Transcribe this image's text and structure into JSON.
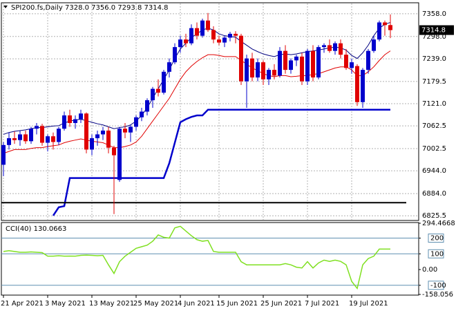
{
  "chart_data": [
    {
      "type": "candlestick",
      "title": "SPI200.fs,Daily  7328.0 7356.0 7293.8 7314.8",
      "categories": [
        "21 Apr 2021",
        null,
        null,
        null,
        null,
        null,
        null,
        null,
        "3 May 2021",
        null,
        null,
        null,
        null,
        null,
        null,
        null,
        "13 May 2021",
        null,
        null,
        null,
        null,
        null,
        null,
        null,
        "25 May 2021",
        null,
        null,
        null,
        null,
        null,
        null,
        null,
        "4 Jun 2021",
        null,
        null,
        null,
        null,
        null,
        null,
        "15 Jun 2021",
        null,
        null,
        null,
        null,
        null,
        null,
        null,
        "25 Jun 2021",
        null,
        null,
        null,
        null,
        null,
        null,
        null,
        "7 Jul 2021",
        null,
        null,
        null,
        null,
        null,
        null,
        null,
        "19 Jul 2021",
        null,
        null,
        null,
        null,
        null,
        null,
        null
      ],
      "ohlc": [
        [
          6960,
          7020,
          6930,
          7012
        ],
        [
          7012,
          7045,
          7000,
          7030
        ],
        [
          7030,
          7048,
          7015,
          7025
        ],
        [
          7025,
          7050,
          7010,
          7040
        ],
        [
          7040,
          7050,
          7015,
          7022
        ],
        [
          7022,
          7060,
          7015,
          7055
        ],
        [
          7055,
          7070,
          7040,
          7062
        ],
        [
          7062,
          7068,
          7010,
          7018
        ],
        [
          7018,
          7040,
          6995,
          7035
        ],
        [
          7035,
          7045,
          7000,
          7020
        ],
        [
          7020,
          7060,
          7012,
          7055
        ],
        [
          7055,
          7100,
          7050,
          7090
        ],
        [
          7090,
          7105,
          7060,
          7070
        ],
        [
          7070,
          7090,
          7055,
          7080
        ],
        [
          7080,
          7105,
          7070,
          7095
        ],
        [
          7095,
          7098,
          6990,
          7000
        ],
        [
          7000,
          7040,
          6985,
          7030
        ],
        [
          7030,
          7050,
          7010,
          7040
        ],
        [
          7040,
          7060,
          7025,
          7050
        ],
        [
          7050,
          7060,
          6990,
          7005
        ],
        [
          7005,
          7010,
          6830,
          6985
        ],
        [
          6920,
          7060,
          6915,
          7055
        ],
        [
          7055,
          7070,
          7030,
          7045
        ],
        [
          7045,
          7065,
          7020,
          7060
        ],
        [
          7060,
          7090,
          7050,
          7085
        ],
        [
          7085,
          7110,
          7075,
          7100
        ],
        [
          7100,
          7135,
          7090,
          7130
        ],
        [
          7130,
          7165,
          7110,
          7160
        ],
        [
          7160,
          7185,
          7140,
          7150
        ],
        [
          7150,
          7210,
          7145,
          7205
        ],
        [
          7205,
          7240,
          7190,
          7230
        ],
        [
          7230,
          7280,
          7225,
          7270
        ],
        [
          7270,
          7300,
          7255,
          7290
        ],
        [
          7290,
          7305,
          7270,
          7280
        ],
        [
          7280,
          7330,
          7275,
          7320
        ],
        [
          7320,
          7335,
          7290,
          7300
        ],
        [
          7300,
          7345,
          7295,
          7340
        ],
        [
          7340,
          7360,
          7310,
          7315
        ],
        [
          7315,
          7325,
          7280,
          7290
        ],
        [
          7290,
          7300,
          7275,
          7282
        ],
        [
          7282,
          7300,
          7270,
          7295
        ],
        [
          7295,
          7310,
          7285,
          7305
        ],
        [
          7305,
          7312,
          7280,
          7300
        ],
        [
          7300,
          7305,
          7170,
          7180
        ],
        [
          7180,
          7250,
          7110,
          7240
        ],
        [
          7240,
          7255,
          7180,
          7190
        ],
        [
          7190,
          7240,
          7180,
          7230
        ],
        [
          7230,
          7235,
          7170,
          7185
        ],
        [
          7185,
          7215,
          7170,
          7210
        ],
        [
          7210,
          7225,
          7185,
          7195
        ],
        [
          7195,
          7270,
          7190,
          7260
        ],
        [
          7260,
          7275,
          7200,
          7210
        ],
        [
          7210,
          7240,
          7200,
          7235
        ],
        [
          7235,
          7250,
          7220,
          7245
        ],
        [
          7245,
          7255,
          7170,
          7180
        ],
        [
          7180,
          7265,
          7170,
          7260
        ],
        [
          7260,
          7275,
          7180,
          7190
        ],
        [
          7190,
          7275,
          7185,
          7270
        ],
        [
          7270,
          7280,
          7255,
          7275
        ],
        [
          7275,
          7290,
          7255,
          7260
        ],
        [
          7260,
          7285,
          7250,
          7280
        ],
        [
          7280,
          7290,
          7240,
          7250
        ],
        [
          7250,
          7265,
          7210,
          7215
        ],
        [
          7215,
          7240,
          7200,
          7230
        ],
        [
          7220,
          7225,
          7115,
          7125
        ],
        [
          7125,
          7215,
          7110,
          7210
        ],
        [
          7210,
          7265,
          7200,
          7260
        ],
        [
          7260,
          7300,
          7255,
          7290
        ],
        [
          7290,
          7340,
          7285,
          7335
        ],
        [
          7335,
          7340,
          7300,
          7328
        ],
        [
          7328,
          7356,
          7293.8,
          7314.8
        ]
      ],
      "up_color": "#0000cc",
      "down_color": "#e00000",
      "series": [
        {
          "color": "#000080",
          "width": 1,
          "values": [
            7040,
            7045,
            7048,
            7050,
            7052,
            7055,
            7058,
            7058,
            7060,
            7062,
            7063,
            7070,
            7075,
            7078,
            7080,
            7076,
            7072,
            7068,
            7065,
            7060,
            7055,
            7058,
            7060,
            7065,
            7075,
            7090,
            7110,
            7135,
            7160,
            7185,
            7210,
            7240,
            7265,
            7280,
            7295,
            7305,
            7315,
            7320,
            7315,
            7305,
            7300,
            7298,
            7296,
            7285,
            7275,
            7265,
            7258,
            7252,
            7248,
            7245,
            7250,
            7252,
            7250,
            7252,
            7255,
            7258,
            7260,
            7262,
            7265,
            7268,
            7270,
            7268,
            7262,
            7248,
            7240,
            7255,
            7275,
            7300,
            7320,
            7330,
            7335
          ]
        },
        {
          "color": "#e00000",
          "width": 1,
          "values": [
            6990,
            6995,
            7000,
            7000,
            7000,
            7003,
            7005,
            7005,
            7008,
            7010,
            7012,
            7018,
            7022,
            7025,
            7028,
            7025,
            7022,
            7020,
            7018,
            7012,
            7005,
            7005,
            7008,
            7012,
            7020,
            7035,
            7055,
            7075,
            7095,
            7115,
            7135,
            7160,
            7185,
            7205,
            7220,
            7232,
            7242,
            7250,
            7250,
            7248,
            7245,
            7245,
            7245,
            7235,
            7225,
            7215,
            7208,
            7200,
            7195,
            7192,
            7195,
            7195,
            7192,
            7193,
            7195,
            7195,
            7198,
            7200,
            7205,
            7210,
            7215,
            7218,
            7218,
            7210,
            7195,
            7195,
            7205,
            7218,
            7235,
            7250,
            7260
          ]
        },
        {
          "color": "#0000cc",
          "width": 2.5,
          "values": [
            null,
            null,
            null,
            null,
            null,
            null,
            null,
            null,
            null,
            6826,
            6848,
            6851,
            6925,
            6925,
            6925,
            6925,
            6925,
            6925,
            6925,
            6925,
            6925,
            6925,
            6925,
            6925,
            6925,
            6925,
            6925,
            6925,
            6925,
            6925,
            6964,
            7018,
            7072,
            7080,
            7086,
            7090,
            7090,
            7105,
            7105,
            7105,
            7105,
            7105,
            7105,
            7105,
            7105,
            7105,
            7105,
            7105,
            7105,
            7105,
            7105,
            7105,
            7105,
            7105,
            7105,
            7105,
            7105,
            7105,
            7105,
            7105,
            7105,
            7105,
            7105,
            7105,
            7105,
            7105,
            7105,
            7105,
            7105,
            7105,
            7105
          ]
        }
      ],
      "hline": {
        "value": 6860,
        "color": "#000000"
      },
      "price_tag": {
        "value": 7314.8,
        "label": "7314.8"
      },
      "ylim": [
        6815,
        7385
      ],
      "yticks": [
        {
          "value": 7358,
          "label": "7358.0"
        },
        {
          "value": 7298,
          "label": "7298.0"
        },
        {
          "value": 7239,
          "label": "7239.0"
        },
        {
          "value": 7179.5,
          "label": "7179.5"
        },
        {
          "value": 7121,
          "label": "7121.0"
        },
        {
          "value": 7062.5,
          "label": "7062.5"
        },
        {
          "value": 7002.5,
          "label": "7002.5"
        },
        {
          "value": 6944,
          "label": "6944.0"
        },
        {
          "value": 6884,
          "label": "6884.0"
        },
        {
          "value": 6825.5,
          "label": "6825.5"
        }
      ],
      "grid": true
    },
    {
      "type": "line",
      "title": "CCI(40) 130.0663",
      "series": [
        {
          "color": "#7fe020",
          "values": [
            115,
            120,
            115,
            110,
            110,
            112,
            110,
            108,
            85,
            85,
            88,
            85,
            86,
            85,
            90,
            92,
            90,
            88,
            90,
            30,
            -25,
            50,
            85,
            110,
            135,
            145,
            155,
            180,
            220,
            205,
            200,
            265,
            275,
            245,
            215,
            190,
            180,
            185,
            115,
            110,
            110,
            110,
            110,
            50,
            30,
            30,
            30,
            30,
            30,
            30,
            30,
            38,
            30,
            15,
            10,
            50,
            10,
            42,
            60,
            52,
            60,
            52,
            30,
            -75,
            -120,
            30,
            70,
            85,
            130,
            130,
            130.0663
          ]
        }
      ],
      "levels": [
        200,
        100,
        -100
      ],
      "level_color": "#5f8fb0",
      "ylim": [
        -158.056,
        294.4668
      ],
      "yticks": [
        294.4668,
        200,
        100,
        {
          "value": 0,
          "label": "0.00"
        },
        -100,
        -158.056
      ]
    }
  ]
}
